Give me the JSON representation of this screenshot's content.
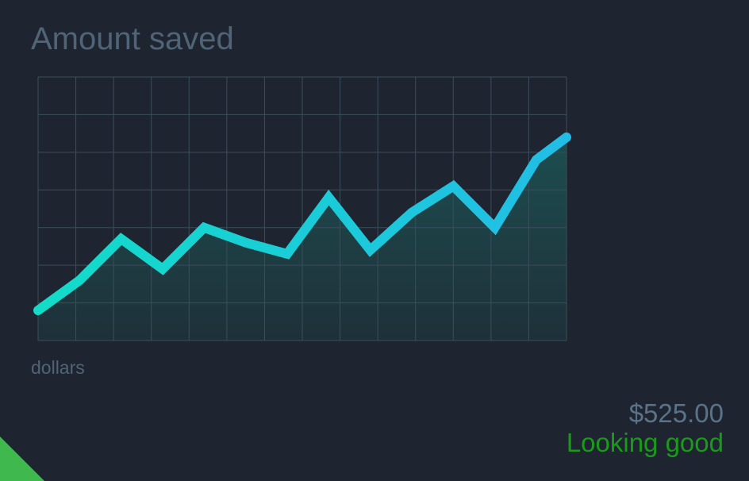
{
  "header": {
    "title": "Amount saved"
  },
  "summary": {
    "amount": "$525.00",
    "status": "Looking good"
  },
  "colors": {
    "background": "#1f2530",
    "grid": "#3a4e5c",
    "line_start": "#12dcc8",
    "line_end": "#22bde6",
    "area_fill": "#1a6f6a",
    "status": "#1a9a1a",
    "corner_accent": "#3fb94e"
  },
  "chart_data": {
    "type": "area",
    "ylabel": "dollars",
    "grid": true,
    "grid_columns": 14,
    "grid_rows": 7,
    "ylim": [
      0,
      7
    ],
    "x": [
      0,
      1.1,
      2.2,
      3.3,
      4.4,
      5.5,
      6.6,
      7.7,
      8.8,
      9.9,
      11,
      12.1,
      13.2,
      14
    ],
    "series": [
      {
        "values": [
          0.8,
          1.6,
          2.7,
          1.9,
          3.0,
          2.6,
          2.3,
          3.8,
          2.4,
          3.4,
          4.1,
          3.0,
          4.8,
          5.4
        ]
      }
    ]
  }
}
